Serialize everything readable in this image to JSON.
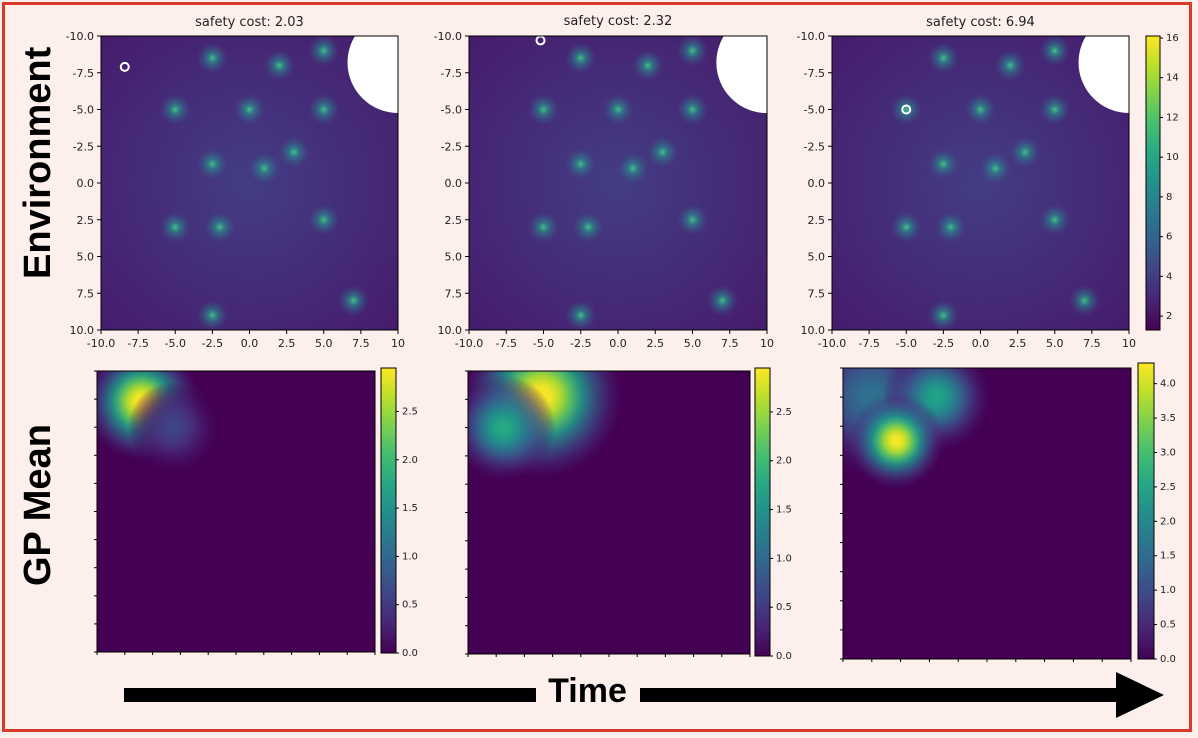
{
  "labels": {
    "row_top": "Environment",
    "row_bottom": "GP Mean",
    "time": "Time"
  },
  "colors": {
    "frame": "#d83a2c",
    "background": "#fcefec",
    "arrow": "#000000"
  },
  "chart_data": [
    {
      "type": "heatmap",
      "panel": "environment",
      "title": "safety cost: 2.03",
      "xlim": [
        -10,
        10
      ],
      "ylim": [
        -10,
        10
      ],
      "xticks": [
        "-10.0",
        "-7.5",
        "-5.0",
        "-2.5",
        "0.0",
        "2.5",
        "5.0",
        "7.5",
        "10"
      ],
      "yticks": [
        "-10.0",
        "-7.5",
        "-5.0",
        "-2.5",
        "0.0",
        "2.5",
        "5.0",
        "7.5",
        "10.0"
      ],
      "agent": [
        -8.4,
        -7.9
      ],
      "hazards": [
        [
          -2.5,
          -8.5
        ],
        [
          2,
          -8
        ],
        [
          5,
          -9
        ],
        [
          -5,
          -5
        ],
        [
          0,
          -5
        ],
        [
          5,
          -5
        ],
        [
          -2.5,
          -1.3
        ],
        [
          3,
          -2.1
        ],
        [
          1,
          -1
        ],
        [
          -5,
          3
        ],
        [
          -2,
          3
        ],
        [
          5,
          2.5
        ],
        [
          -2.5,
          9
        ],
        [
          7,
          8
        ]
      ],
      "colormap": "viridis",
      "colorbar_ticks": []
    },
    {
      "type": "heatmap",
      "panel": "environment",
      "title": "safety cost: 2.32",
      "xlim": [
        -10,
        10
      ],
      "ylim": [
        -10,
        10
      ],
      "xticks": [
        "-10.0",
        "-7.5",
        "-5.0",
        "-2.5",
        "0.0",
        "2.5",
        "5.0",
        "7.5",
        "10"
      ],
      "yticks": [
        "-10.0",
        "-7.5",
        "-5.0",
        "-2.5",
        "0.0",
        "2.5",
        "5.0",
        "7.5",
        "10.0"
      ],
      "agent": [
        -5.2,
        -9.7
      ],
      "hazards": [
        [
          -2.5,
          -8.5
        ],
        [
          2,
          -8
        ],
        [
          5,
          -9
        ],
        [
          -5,
          -5
        ],
        [
          0,
          -5
        ],
        [
          5,
          -5
        ],
        [
          -2.5,
          -1.3
        ],
        [
          3,
          -2.1
        ],
        [
          1,
          -1
        ],
        [
          -5,
          3
        ],
        [
          -2,
          3
        ],
        [
          5,
          2.5
        ],
        [
          -2.5,
          9
        ],
        [
          7,
          8
        ]
      ],
      "colormap": "viridis",
      "colorbar_ticks": []
    },
    {
      "type": "heatmap",
      "panel": "environment",
      "title": "safety cost: 6.94",
      "xlim": [
        -10,
        10
      ],
      "ylim": [
        -10,
        10
      ],
      "xticks": [
        "-10.0",
        "-7.5",
        "-5.0",
        "-2.5",
        "0.0",
        "2.5",
        "5.0",
        "7.5",
        "10"
      ],
      "yticks": [
        "-10.0",
        "-7.5",
        "-5.0",
        "-2.5",
        "0.0",
        "2.5",
        "5.0",
        "7.5",
        "10.0"
      ],
      "agent": [
        -5,
        -5
      ],
      "hazards": [
        [
          -2.5,
          -8.5
        ],
        [
          2,
          -8
        ],
        [
          5,
          -9
        ],
        [
          -5,
          -5
        ],
        [
          0,
          -5
        ],
        [
          5,
          -5
        ],
        [
          -2.5,
          -1.3
        ],
        [
          3,
          -2.1
        ],
        [
          1,
          -1
        ],
        [
          -5,
          3
        ],
        [
          -2,
          3
        ],
        [
          5,
          2.5
        ],
        [
          -2.5,
          9
        ],
        [
          7,
          8
        ]
      ],
      "colormap": "viridis",
      "colorbar_range": [
        1.3,
        16.1
      ],
      "colorbar_ticks": [
        "2",
        "4",
        "6",
        "8",
        "10",
        "12",
        "14",
        "16"
      ]
    },
    {
      "type": "heatmap",
      "panel": "gp_mean",
      "title": "",
      "xlim": [
        -10,
        10
      ],
      "ylim": [
        -10,
        10
      ],
      "blobs": [
        [
          -6.8,
          -7.8,
          1.9,
          3.0
        ],
        [
          -4.5,
          -6.0,
          1.5,
          0.6
        ]
      ],
      "colormap": "viridis",
      "colorbar_range": [
        0,
        2.95
      ],
      "colorbar_ticks": [
        "0.0",
        "0.5",
        "1.0",
        "1.5",
        "2.0",
        "2.5"
      ]
    },
    {
      "type": "heatmap",
      "panel": "gp_mean",
      "title": "",
      "xlim": [
        -10,
        10
      ],
      "ylim": [
        -10,
        10
      ],
      "blobs": [
        [
          -4.8,
          -8.2,
          2.6,
          3.0
        ],
        [
          -7.5,
          -6.0,
          1.7,
          1.8
        ]
      ],
      "colormap": "viridis",
      "colorbar_range": [
        0,
        2.95
      ],
      "colorbar_ticks": [
        "0.0",
        "0.5",
        "1.0",
        "1.5",
        "2.0",
        "2.5"
      ]
    },
    {
      "type": "heatmap",
      "panel": "gp_mean",
      "title": "",
      "xlim": [
        -10,
        10
      ],
      "ylim": [
        -10,
        10
      ],
      "blobs": [
        [
          -6.3,
          -5.0,
          1.5,
          4.3
        ],
        [
          -3.5,
          -8.0,
          1.7,
          2.5
        ],
        [
          -8.0,
          -8.0,
          2.5,
          1.6
        ]
      ],
      "colormap": "viridis",
      "colorbar_range": [
        0,
        4.3
      ],
      "colorbar_ticks": [
        "0.0",
        "0.5",
        "1.0",
        "1.5",
        "2.0",
        "2.5",
        "3.0",
        "3.5",
        "4.0"
      ]
    }
  ]
}
